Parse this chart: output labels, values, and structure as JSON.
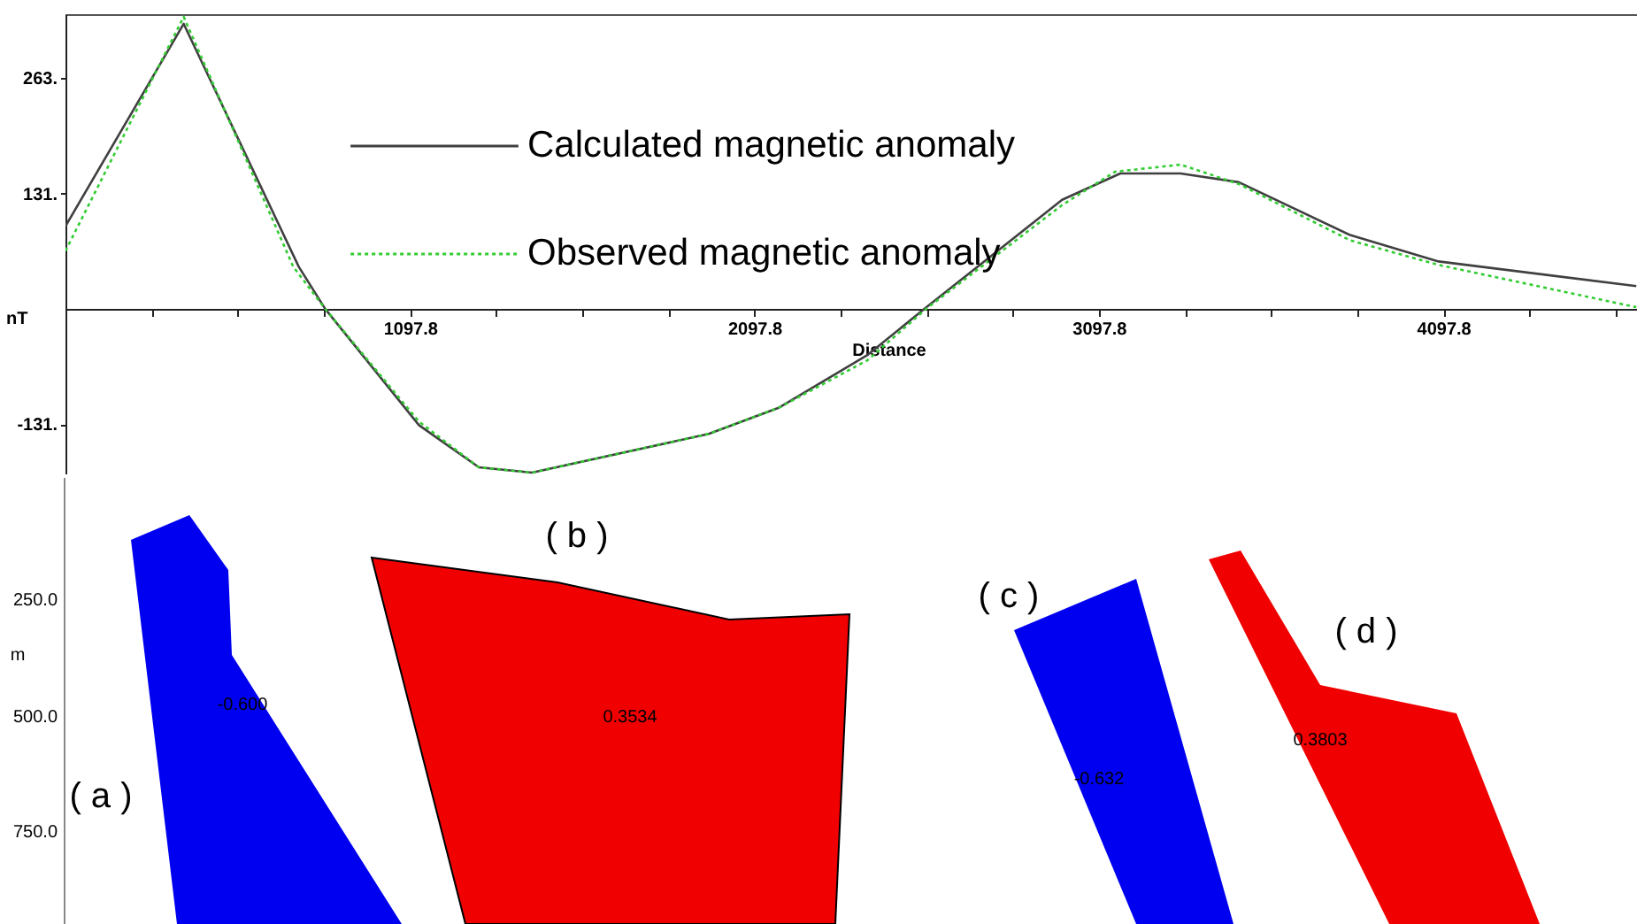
{
  "chart_data": [
    {
      "type": "line",
      "xlabel": "Distance",
      "ylabel": "nT",
      "xlim": [
        97.8,
        4660
      ],
      "ylim": [
        -188,
        335
      ],
      "xticks": [
        {
          "value": 347.8,
          "label": null
        },
        {
          "value": 597.8,
          "label": null
        },
        {
          "value": 847.8,
          "label": null
        },
        1097.8,
        {
          "value": 1347.8,
          "label": null
        },
        {
          "value": 1597.8,
          "label": null
        },
        {
          "value": 1847.8,
          "label": null
        },
        2097.8,
        {
          "value": 2347.8,
          "label": null
        },
        {
          "value": 2597.8,
          "label": null
        },
        {
          "value": 2847.8,
          "label": null
        },
        3097.8,
        {
          "value": 3347.8,
          "label": null
        },
        {
          "value": 3597.8,
          "label": null
        },
        {
          "value": 3847.8,
          "label": null
        },
        4097.8,
        {
          "value": 4347.8,
          "label": null
        },
        {
          "value": 4597.8,
          "label": null
        }
      ],
      "yticks": [
        {
          "value": -131,
          "label": "-131."
        },
        {
          "value": 131,
          "label": "131."
        },
        {
          "value": 263,
          "label": "263."
        }
      ],
      "grid": false,
      "legend": "top",
      "series": [
        {
          "name": "Calculated magnetic anomaly",
          "color": "#404040",
          "line_style": "solid",
          "x": [
            97.8,
            441,
            775,
            852,
            1124,
            1298,
            1452,
            1965,
            2170,
            2427,
            2591,
            2991,
            3160,
            3335,
            3504,
            3827,
            4084,
            4658
          ],
          "values": [
            94,
            324,
            48,
            0,
            -132,
            -180,
            -186,
            -142,
            -112,
            -52,
            0,
            124,
            154,
            154,
            144,
            84,
            54,
            26
          ]
        },
        {
          "name": "Observed magnetic anomaly",
          "color": "#33cc33",
          "line_style": "dotted",
          "x": [
            97.8,
            441,
            759,
            852,
            1124,
            1298,
            1452,
            1965,
            2170,
            2427,
            2596,
            2991,
            3145,
            3335,
            3504,
            3827,
            4084,
            4658
          ],
          "values": [
            66,
            332,
            48,
            0,
            -128,
            -180,
            -186,
            -142,
            -112,
            -58,
            0,
            118,
            156,
            164,
            142,
            78,
            50,
            2
          ]
        }
      ]
    },
    {
      "type": "other",
      "ylabel": "m",
      "annotations": [
        "250.0",
        "500.0",
        "750.0",
        "-0.600",
        "0.3534",
        "-0.632",
        "0.3803",
        "( a )",
        "( b )",
        "( c )",
        "( d )"
      ]
    }
  ]
}
